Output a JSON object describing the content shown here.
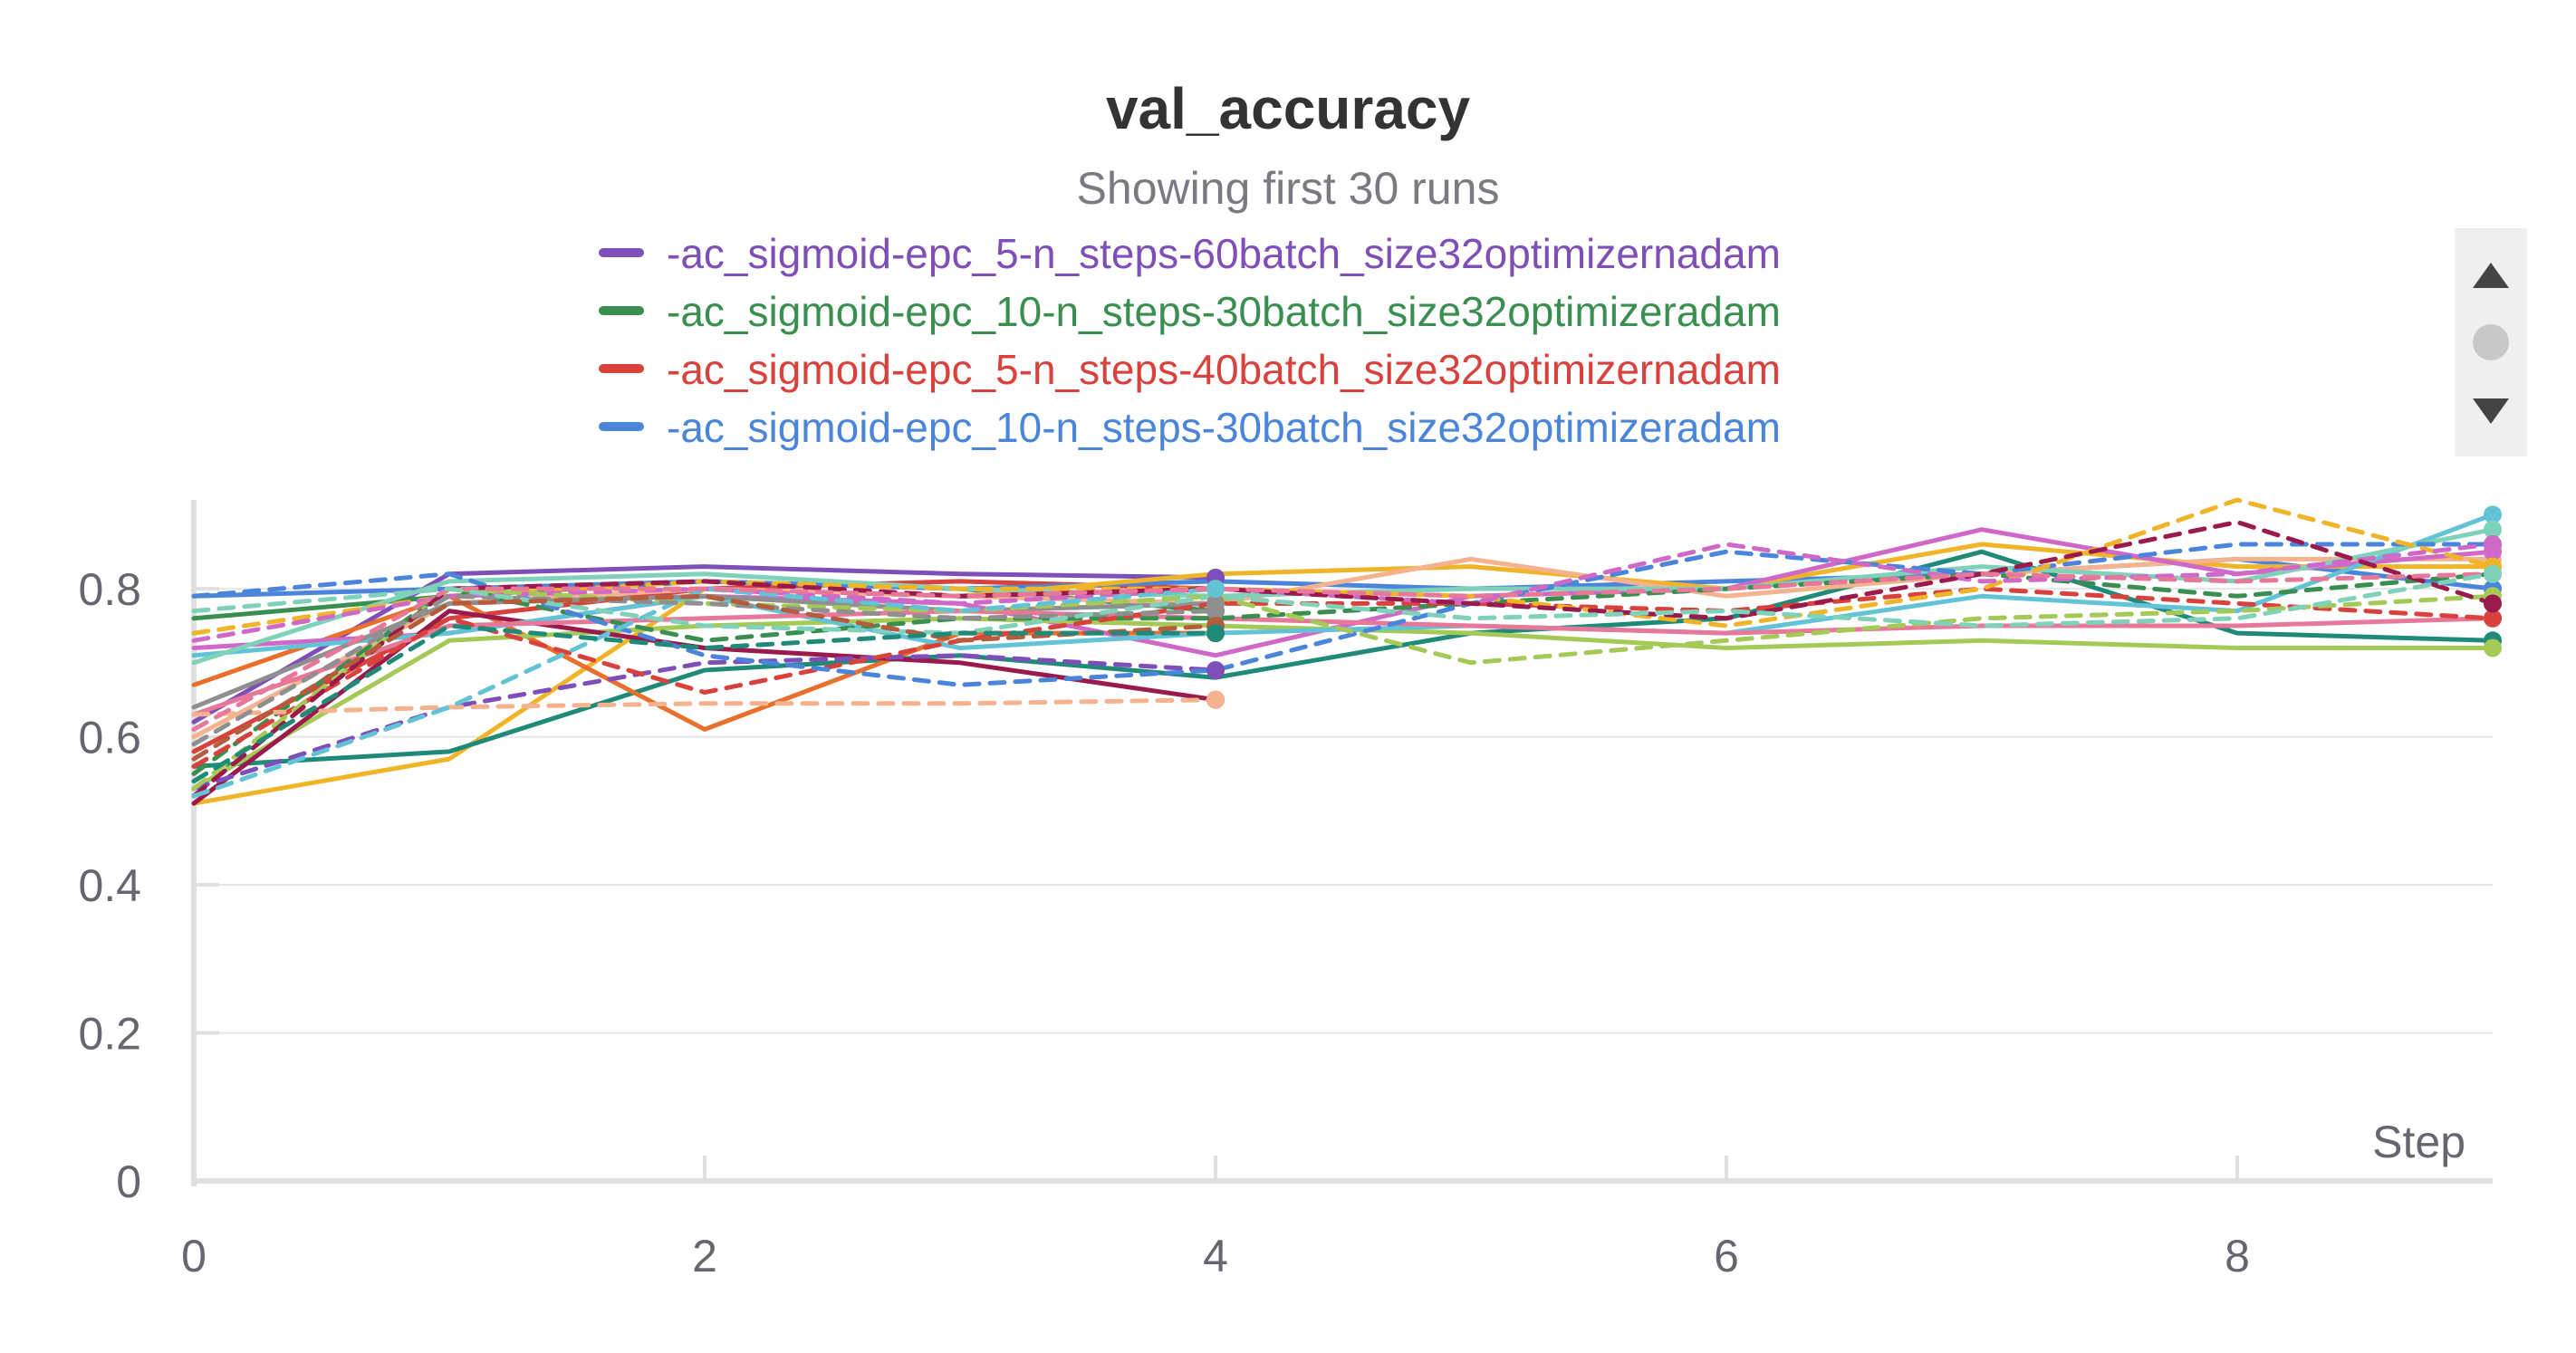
{
  "chart_data": {
    "type": "line",
    "title": "val_accuracy",
    "subtitle": "Showing first 30 runs",
    "xlabel": "Step",
    "ylabel": "",
    "xlim": [
      0,
      9
    ],
    "ylim": [
      0,
      0.92
    ],
    "x_ticks": [
      0,
      2,
      4,
      6,
      8
    ],
    "y_ticks": [
      0,
      0.2,
      0.4,
      0.6,
      0.8
    ],
    "x_tick_labels": [
      "0",
      "2",
      "4",
      "6",
      "8"
    ],
    "y_tick_labels": [
      "0",
      "0.2",
      "0.4",
      "0.6",
      "0.8"
    ],
    "grid": true,
    "legend_position": "top",
    "legend": [
      {
        "name": "-ac_sigmoid-epc_5-n_steps-60batch_size32optimizernadam",
        "color": "#7e4fb8"
      },
      {
        "name": "-ac_sigmoid-epc_10-n_steps-30batch_size32optimizeradam",
        "color": "#3a8f50"
      },
      {
        "name": "-ac_sigmoid-epc_5-n_steps-40batch_size32optimizernadam",
        "color": "#d8413c"
      },
      {
        "name": "-ac_sigmoid-epc_10-n_steps-30batch_size32optimizeradam",
        "color": "#4a85db"
      }
    ],
    "series": [
      {
        "color": "#7e4fb8",
        "dash": false,
        "x": [
          0,
          1,
          2,
          3,
          4
        ],
        "y": [
          0.62,
          0.82,
          0.83,
          0.82,
          0.815
        ]
      },
      {
        "color": "#3a8f50",
        "dash": false,
        "x": [
          0,
          1,
          2,
          3,
          4
        ],
        "y": [
          0.76,
          0.79,
          0.81,
          0.8,
          0.77
        ]
      },
      {
        "color": "#d8413c",
        "dash": false,
        "x": [
          0,
          1,
          2,
          3,
          4
        ],
        "y": [
          0.58,
          0.76,
          0.8,
          0.81,
          0.8
        ]
      },
      {
        "color": "#4a85db",
        "dash": false,
        "x": [
          0,
          1,
          2,
          3,
          4,
          5,
          6,
          7,
          8,
          9
        ],
        "y": [
          0.79,
          0.8,
          0.81,
          0.8,
          0.81,
          0.8,
          0.81,
          0.82,
          0.84,
          0.8
        ]
      },
      {
        "color": "#f0b429",
        "dash": false,
        "x": [
          0,
          1,
          2,
          3,
          4,
          5,
          6,
          7,
          8,
          9
        ],
        "y": [
          0.51,
          0.57,
          0.8,
          0.79,
          0.82,
          0.83,
          0.8,
          0.86,
          0.83,
          0.83
        ]
      },
      {
        "color": "#1f8a78",
        "dash": false,
        "x": [
          0,
          1,
          2,
          3,
          4,
          5,
          6,
          7,
          8,
          9
        ],
        "y": [
          0.56,
          0.58,
          0.69,
          0.71,
          0.68,
          0.74,
          0.76,
          0.85,
          0.74,
          0.73
        ]
      },
      {
        "color": "#e86f2c",
        "dash": false,
        "x": [
          0,
          1,
          2,
          3,
          4
        ],
        "y": [
          0.67,
          0.79,
          0.61,
          0.74,
          0.74
        ]
      },
      {
        "color": "#f5b28f",
        "dash": false,
        "x": [
          0,
          1,
          2,
          3,
          4,
          5,
          6,
          7,
          8,
          9
        ],
        "y": [
          0.6,
          0.78,
          0.8,
          0.79,
          0.78,
          0.84,
          0.79,
          0.82,
          0.84,
          0.84
        ]
      },
      {
        "color": "#d068c7",
        "dash": false,
        "x": [
          0,
          1,
          2,
          3,
          4,
          5,
          6,
          7,
          8,
          9
        ],
        "y": [
          0.72,
          0.74,
          0.79,
          0.78,
          0.71,
          0.79,
          0.8,
          0.88,
          0.82,
          0.85
        ]
      },
      {
        "color": "#a4c957",
        "dash": false,
        "x": [
          0,
          1,
          2,
          3,
          4,
          5,
          6,
          7,
          8,
          9
        ],
        "y": [
          0.53,
          0.73,
          0.75,
          0.76,
          0.75,
          0.74,
          0.72,
          0.73,
          0.72,
          0.72
        ]
      },
      {
        "color": "#9a1a4c",
        "dash": false,
        "x": [
          0,
          1,
          2,
          3,
          4
        ],
        "y": [
          0.51,
          0.77,
          0.72,
          0.7,
          0.65
        ]
      },
      {
        "color": "#63c3d6",
        "dash": false,
        "x": [
          0,
          1,
          2,
          3,
          4,
          5,
          6,
          7,
          8,
          9
        ],
        "y": [
          0.71,
          0.74,
          0.79,
          0.72,
          0.74,
          0.75,
          0.74,
          0.79,
          0.77,
          0.9
        ]
      },
      {
        "color": "#8f8f8f",
        "dash": false,
        "x": [
          0,
          1,
          2,
          3,
          4
        ],
        "y": [
          0.64,
          0.78,
          0.79,
          0.77,
          0.78
        ]
      },
      {
        "color": "#e8789a",
        "dash": false,
        "x": [
          0,
          1,
          2,
          3,
          4,
          5,
          6,
          7,
          8,
          9
        ],
        "y": [
          0.63,
          0.75,
          0.76,
          0.77,
          0.76,
          0.75,
          0.74,
          0.75,
          0.75,
          0.76
        ]
      },
      {
        "color": "#7fd2b9",
        "dash": false,
        "x": [
          0,
          1,
          2,
          3,
          4,
          5,
          6,
          7,
          8,
          9
        ],
        "y": [
          0.7,
          0.81,
          0.82,
          0.8,
          0.79,
          0.8,
          0.8,
          0.83,
          0.81,
          0.88
        ]
      },
      {
        "color": "#7e4fb8",
        "dash": true,
        "x": [
          0,
          1,
          2,
          3,
          4
        ],
        "y": [
          0.53,
          0.64,
          0.7,
          0.71,
          0.69
        ]
      },
      {
        "color": "#3a8f50",
        "dash": true,
        "x": [
          0,
          1,
          2,
          3,
          4,
          5,
          6,
          7,
          8,
          9
        ],
        "y": [
          0.55,
          0.8,
          0.73,
          0.76,
          0.76,
          0.78,
          0.8,
          0.82,
          0.79,
          0.82
        ]
      },
      {
        "color": "#d8413c",
        "dash": true,
        "x": [
          0,
          1,
          2,
          3,
          4,
          5,
          6,
          7,
          8,
          9
        ],
        "y": [
          0.56,
          0.76,
          0.66,
          0.73,
          0.78,
          0.78,
          0.77,
          0.8,
          0.78,
          0.76
        ]
      },
      {
        "color": "#4a85db",
        "dash": true,
        "x": [
          0,
          1,
          2,
          3,
          4,
          5,
          6,
          7,
          8,
          9
        ],
        "y": [
          0.79,
          0.82,
          0.71,
          0.67,
          0.69,
          0.78,
          0.85,
          0.82,
          0.86,
          0.86
        ]
      },
      {
        "color": "#f0b429",
        "dash": true,
        "x": [
          0,
          1,
          2,
          3,
          4,
          5,
          6,
          7,
          8,
          9
        ],
        "y": [
          0.74,
          0.79,
          0.81,
          0.8,
          0.8,
          0.79,
          0.75,
          0.8,
          0.92,
          0.83
        ]
      },
      {
        "color": "#f5b28f",
        "dash": true,
        "x": [
          0,
          1,
          2,
          3,
          4
        ],
        "y": [
          0.63,
          0.64,
          0.645,
          0.645,
          0.65
        ]
      },
      {
        "color": "#d068c7",
        "dash": true,
        "x": [
          0,
          1,
          2,
          3,
          4,
          5,
          6,
          7,
          8,
          9
        ],
        "y": [
          0.73,
          0.79,
          0.8,
          0.78,
          0.8,
          0.78,
          0.86,
          0.81,
          0.82,
          0.86
        ]
      },
      {
        "color": "#a4c957",
        "dash": true,
        "x": [
          0,
          1,
          2,
          3,
          4,
          5,
          6,
          7,
          8,
          9
        ],
        "y": [
          0.53,
          0.8,
          0.78,
          0.77,
          0.79,
          0.7,
          0.73,
          0.76,
          0.77,
          0.79
        ]
      },
      {
        "color": "#9a1a4c",
        "dash": true,
        "x": [
          0,
          1,
          2,
          3,
          4,
          5,
          6,
          7,
          8,
          9
        ],
        "y": [
          0.52,
          0.8,
          0.81,
          0.79,
          0.8,
          0.78,
          0.76,
          0.82,
          0.89,
          0.78
        ]
      },
      {
        "color": "#63c3d6",
        "dash": true,
        "x": [
          0,
          1,
          2,
          3,
          4
        ],
        "y": [
          0.52,
          0.64,
          0.8,
          0.77,
          0.8
        ]
      },
      {
        "color": "#8f8f8f",
        "dash": true,
        "x": [
          0,
          1,
          2,
          3,
          4
        ],
        "y": [
          0.59,
          0.79,
          0.78,
          0.76,
          0.77
        ]
      },
      {
        "color": "#e8789a",
        "dash": true,
        "x": [
          0,
          1,
          2,
          3,
          4,
          5,
          6,
          7,
          8,
          9
        ],
        "y": [
          0.61,
          0.8,
          0.8,
          0.79,
          0.8,
          0.79,
          0.8,
          0.82,
          0.81,
          0.82
        ]
      },
      {
        "color": "#7fd2b9",
        "dash": true,
        "x": [
          0,
          1,
          2,
          3,
          4,
          5,
          6,
          7,
          8,
          9
        ],
        "y": [
          0.77,
          0.8,
          0.75,
          0.74,
          0.79,
          0.76,
          0.77,
          0.75,
          0.76,
          0.82
        ]
      },
      {
        "color": "#b45c3b",
        "dash": true,
        "x": [
          0,
          1,
          2,
          3,
          4
        ],
        "y": [
          0.57,
          0.78,
          0.79,
          0.73,
          0.75
        ]
      },
      {
        "color": "#1f8a78",
        "dash": true,
        "x": [
          0,
          1,
          2,
          3,
          4
        ],
        "y": [
          0.54,
          0.75,
          0.72,
          0.74,
          0.74
        ]
      }
    ]
  },
  "ui": {
    "scroll_up_icon": "triangle-up-icon",
    "scroll_thumb_icon": "circle-icon",
    "scroll_down_icon": "triangle-down-icon",
    "scroll_bg": "#efefef",
    "scroll_fg": "#444444",
    "scroll_thumb": "#c8c8c8"
  }
}
